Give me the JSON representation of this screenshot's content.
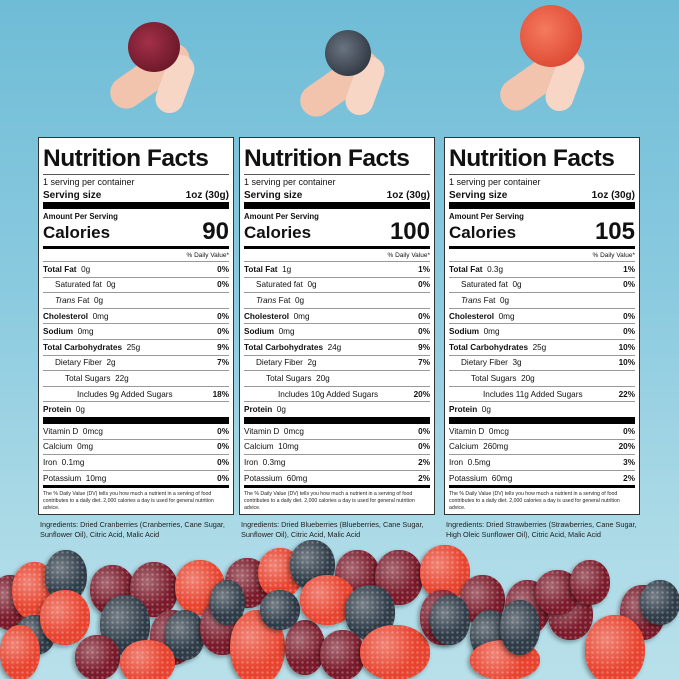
{
  "colors": {
    "sky": "#7fc4d9",
    "cranberry": "#7a1a2a",
    "blueberry": "#2f3c48",
    "strawberry": "#e8432e"
  },
  "panels": [
    {
      "title": "Nutrition Facts",
      "servings": "1 serving per container",
      "serving_size_label": "Serving size",
      "serving_size": "1oz (30g)",
      "amount_per_serving": "Amount Per Serving",
      "calories_label": "Calories",
      "calories": "90",
      "dv_header": "% Daily Value*",
      "rows": [
        {
          "label": "Total Fat",
          "amount": "0g",
          "dv": "0%",
          "bold": true,
          "indent": 0
        },
        {
          "label": "Saturated fat",
          "amount": "0g",
          "dv": "0%",
          "bold": false,
          "indent": 1
        },
        {
          "label": "Trans",
          "label2": " Fat",
          "amount": "0g",
          "dv": "",
          "bold": false,
          "indent": 1,
          "italic": true
        },
        {
          "label": "Cholesterol",
          "amount": "0mg",
          "dv": "0%",
          "bold": true,
          "indent": 0
        },
        {
          "label": "Sodium",
          "amount": "0mg",
          "dv": "0%",
          "bold": true,
          "indent": 0
        },
        {
          "label": "Total Carbohydrates",
          "amount": "25g",
          "dv": "9%",
          "bold": true,
          "indent": 0
        },
        {
          "label": "Dietary Fiber",
          "amount": "2g",
          "dv": "7%",
          "bold": false,
          "indent": 1
        },
        {
          "label": "Total Sugars",
          "amount": "22g",
          "dv": "",
          "bold": false,
          "indent": 2
        },
        {
          "label": "Includes 9g Added Sugars",
          "amount": "",
          "dv": "18%",
          "bold": false,
          "indent": 3
        },
        {
          "label": "Protein",
          "amount": "0g",
          "dv": "",
          "bold": true,
          "indent": 0
        }
      ],
      "vitamins": [
        {
          "label": "Vitamin D",
          "amount": "0mcg",
          "dv": "0%"
        },
        {
          "label": "Calcium",
          "amount": "0mg",
          "dv": "0%"
        },
        {
          "label": "Iron",
          "amount": "0.1mg",
          "dv": "0%"
        },
        {
          "label": "Potassium",
          "amount": "10mg",
          "dv": "0%"
        }
      ],
      "footnote": "The % Daily Value (DV) tells you how much a nutrient in a serving of food contributes to a daily diet. 2,000 calories a day is used for general nutrition advice.",
      "ingredients": "Ingredients: Dried Cranberries (Cranberries, Cane Sugar, Sunflower Oil), Citric Acid, Malic Acid"
    },
    {
      "title": "Nutrition Facts",
      "servings": "1 serving per container",
      "serving_size_label": "Serving size",
      "serving_size": "1oz (30g)",
      "amount_per_serving": "Amount Per Serving",
      "calories_label": "Calories",
      "calories": "100",
      "dv_header": "% Daily Value*",
      "rows": [
        {
          "label": "Total Fat",
          "amount": "1g",
          "dv": "1%",
          "bold": true,
          "indent": 0
        },
        {
          "label": "Saturated fat",
          "amount": "0g",
          "dv": "0%",
          "bold": false,
          "indent": 1
        },
        {
          "label": "Trans",
          "label2": " Fat",
          "amount": "0g",
          "dv": "",
          "bold": false,
          "indent": 1,
          "italic": true
        },
        {
          "label": "Cholesterol",
          "amount": "0mg",
          "dv": "0%",
          "bold": true,
          "indent": 0
        },
        {
          "label": "Sodium",
          "amount": "0mg",
          "dv": "0%",
          "bold": true,
          "indent": 0
        },
        {
          "label": "Total Carbohydrates",
          "amount": "24g",
          "dv": "9%",
          "bold": true,
          "indent": 0
        },
        {
          "label": "Dietary Fiber",
          "amount": "2g",
          "dv": "7%",
          "bold": false,
          "indent": 1
        },
        {
          "label": "Total Sugars",
          "amount": "20g",
          "dv": "",
          "bold": false,
          "indent": 2
        },
        {
          "label": "Includes 10g Added Sugars",
          "amount": "",
          "dv": "20%",
          "bold": false,
          "indent": 3
        },
        {
          "label": "Protein",
          "amount": "0g",
          "dv": "",
          "bold": true,
          "indent": 0
        }
      ],
      "vitamins": [
        {
          "label": "Vitamin D",
          "amount": "0mcg",
          "dv": "0%"
        },
        {
          "label": "Calcium",
          "amount": "10mg",
          "dv": "0%"
        },
        {
          "label": "Iron",
          "amount": "0.3mg",
          "dv": "2%"
        },
        {
          "label": "Potassium",
          "amount": "60mg",
          "dv": "2%"
        }
      ],
      "footnote": "The % Daily Value (DV) tells you how much a nutrient in a serving of food contributes to a daily diet. 2,000 calories a day is used for general nutrition advice.",
      "ingredients": "Ingredients: Dried Blueberries (Blueberries, Cane Sugar, Sunflower Oil), Citric Acid, Malic Acid"
    },
    {
      "title": "Nutrition Facts",
      "servings": "1 serving per container",
      "serving_size_label": "Serving size",
      "serving_size": "1oz (30g)",
      "amount_per_serving": "Amount Per Serving",
      "calories_label": "Calories",
      "calories": "105",
      "dv_header": "% Daily Value*",
      "rows": [
        {
          "label": "Total Fat",
          "amount": "0.3g",
          "dv": "1%",
          "bold": true,
          "indent": 0
        },
        {
          "label": "Saturated fat",
          "amount": "0g",
          "dv": "0%",
          "bold": false,
          "indent": 1
        },
        {
          "label": "Trans",
          "label2": " Fat",
          "amount": "0g",
          "dv": "",
          "bold": false,
          "indent": 1,
          "italic": true
        },
        {
          "label": "Cholesterol",
          "amount": "0mg",
          "dv": "0%",
          "bold": true,
          "indent": 0
        },
        {
          "label": "Sodium",
          "amount": "0mg",
          "dv": "0%",
          "bold": true,
          "indent": 0
        },
        {
          "label": "Total Carbohydrates",
          "amount": "25g",
          "dv": "10%",
          "bold": true,
          "indent": 0
        },
        {
          "label": "Dietary Fiber",
          "amount": "3g",
          "dv": "10%",
          "bold": false,
          "indent": 1
        },
        {
          "label": "Total Sugars",
          "amount": "20g",
          "dv": "",
          "bold": false,
          "indent": 2
        },
        {
          "label": "Includes 11g Added Sugars",
          "amount": "",
          "dv": "22%",
          "bold": false,
          "indent": 3
        },
        {
          "label": "Protein",
          "amount": "0g",
          "dv": "",
          "bold": true,
          "indent": 0
        }
      ],
      "vitamins": [
        {
          "label": "Vitamin D",
          "amount": "0mcg",
          "dv": "0%"
        },
        {
          "label": "Calcium",
          "amount": "260mg",
          "dv": "20%"
        },
        {
          "label": "Iron",
          "amount": "0.5mg",
          "dv": "3%"
        },
        {
          "label": "Potassium",
          "amount": "60mg",
          "dv": "2%"
        }
      ],
      "footnote": "The % Daily Value (DV) tells you how much a nutrient in a serving of food contributes to a daily diet. 2,000 calories a day is used for general nutrition advice.",
      "ingredients": "Ingredients: Dried Strawberries (Strawberries, Cane Sugar, High Oleic Sunflower Oil), Citric Acid, Malic Acid"
    }
  ]
}
